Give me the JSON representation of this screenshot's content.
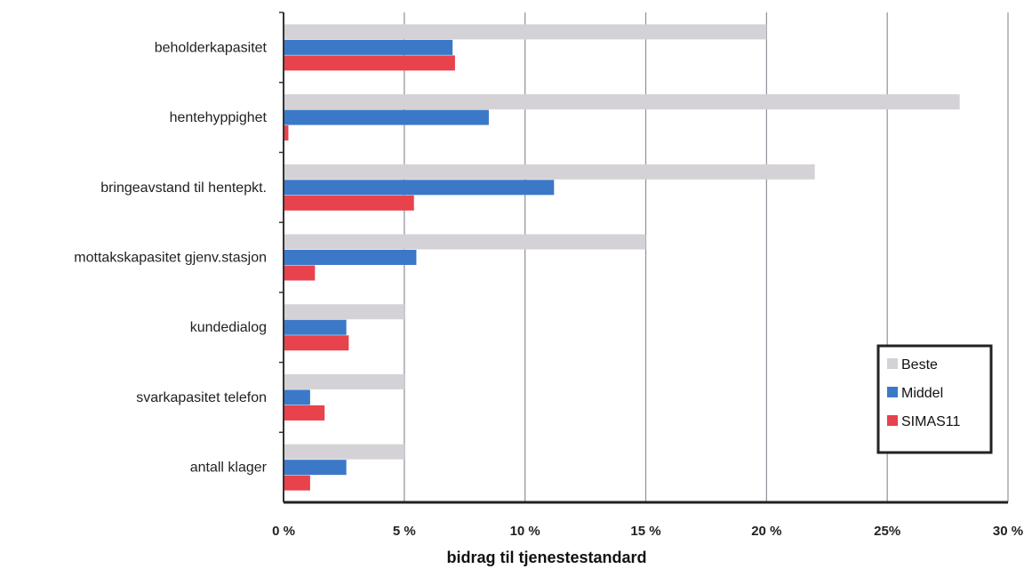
{
  "chart_data": {
    "type": "bar",
    "orientation": "horizontal",
    "categories": [
      "beholderkapasitet",
      "hentehyppighet",
      "bringeavstand til hentepkt.",
      "mottakskapasitet gjenv.stasjon",
      "kundedialog",
      "svarkapasitet telefon",
      "antall klager"
    ],
    "series": [
      {
        "name": "Beste",
        "color": "#d4d2d6",
        "values": [
          20,
          28,
          22,
          15,
          5,
          5,
          5
        ]
      },
      {
        "name": "Middel",
        "color": "#3b78c8",
        "values": [
          7,
          8.5,
          11.2,
          5.5,
          2.6,
          1.1,
          2.6
        ]
      },
      {
        "name": "SIMAS11",
        "color": "#e8424c",
        "values": [
          7.1,
          0.2,
          5.4,
          1.3,
          2.7,
          1.7,
          1.1
        ]
      }
    ],
    "xlim": [
      0,
      30
    ],
    "x_ticks": [
      0,
      5,
      10,
      15,
      20,
      25,
      30
    ],
    "x_tick_labels": [
      "0 %",
      "5 %",
      "10 %",
      "15 %",
      "20 %",
      "25%",
      "30 %"
    ],
    "xlabel": "bidrag til tjenestestandard",
    "ylabel": "",
    "title": "",
    "grid": true,
    "legend": "bottom-right"
  }
}
